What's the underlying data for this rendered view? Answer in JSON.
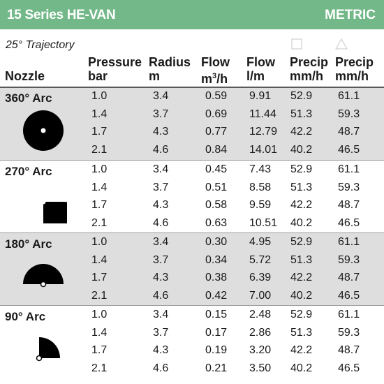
{
  "header": {
    "title": "15 Series HE-VAN",
    "unit_system": "METRIC",
    "header_bg_color": "#73b888"
  },
  "trajectory": "25° Trajectory",
  "columns": {
    "nozzle": "Nozzle",
    "pressure": {
      "top": "Pressure",
      "bottom": "bar"
    },
    "radius": {
      "top": "Radius",
      "bottom": "m"
    },
    "flow_m3h": {
      "top": "Flow",
      "bottom": "m",
      "sup": "3",
      "suffix": "/h"
    },
    "flow_lm": {
      "top": "Flow",
      "bottom": "l/m"
    },
    "precip_square": {
      "symbol": "square-icon",
      "top": "Precip",
      "bottom": "mm/h"
    },
    "precip_triangle": {
      "symbol": "triangle-icon",
      "top": "Precip",
      "bottom": "mm/h"
    }
  },
  "band_colors": {
    "shaded": "#dedede",
    "white": "#ffffff"
  },
  "groups": [
    {
      "arc": "360° Arc",
      "icon": "full-circle-pattern-icon",
      "degrees": 360,
      "rows": [
        [
          "1.0",
          "3.4",
          "0.59",
          "9.91",
          "52.9",
          "61.1"
        ],
        [
          "1.4",
          "3.7",
          "0.69",
          "11.44",
          "51.3",
          "59.3"
        ],
        [
          "1.7",
          "4.3",
          "0.77",
          "12.79",
          "42.2",
          "48.7"
        ],
        [
          "2.1",
          "4.6",
          "0.84",
          "14.01",
          "40.2",
          "46.5"
        ]
      ]
    },
    {
      "arc": "270° Arc",
      "icon": "three-quarter-circle-pattern-icon",
      "degrees": 270,
      "rows": [
        [
          "1.0",
          "3.4",
          "0.45",
          "7.43",
          "52.9",
          "61.1"
        ],
        [
          "1.4",
          "3.7",
          "0.51",
          "8.58",
          "51.3",
          "59.3"
        ],
        [
          "1.7",
          "4.3",
          "0.58",
          "9.59",
          "42.2",
          "48.7"
        ],
        [
          "2.1",
          "4.6",
          "0.63",
          "10.51",
          "40.2",
          "46.5"
        ]
      ]
    },
    {
      "arc": "180° Arc",
      "icon": "half-circle-pattern-icon",
      "degrees": 180,
      "rows": [
        [
          "1.0",
          "3.4",
          "0.30",
          "4.95",
          "52.9",
          "61.1"
        ],
        [
          "1.4",
          "3.7",
          "0.34",
          "5.72",
          "51.3",
          "59.3"
        ],
        [
          "1.7",
          "4.3",
          "0.38",
          "6.39",
          "42.2",
          "48.7"
        ],
        [
          "2.1",
          "4.6",
          "0.42",
          "7.00",
          "40.2",
          "46.5"
        ]
      ]
    },
    {
      "arc": "90° Arc",
      "icon": "quarter-circle-pattern-icon",
      "degrees": 90,
      "rows": [
        [
          "1.0",
          "3.4",
          "0.15",
          "2.48",
          "52.9",
          "61.1"
        ],
        [
          "1.4",
          "3.7",
          "0.17",
          "2.86",
          "51.3",
          "59.3"
        ],
        [
          "1.7",
          "4.3",
          "0.19",
          "3.20",
          "42.2",
          "48.7"
        ],
        [
          "2.1",
          "4.6",
          "0.21",
          "3.50",
          "40.2",
          "46.5"
        ]
      ]
    }
  ]
}
